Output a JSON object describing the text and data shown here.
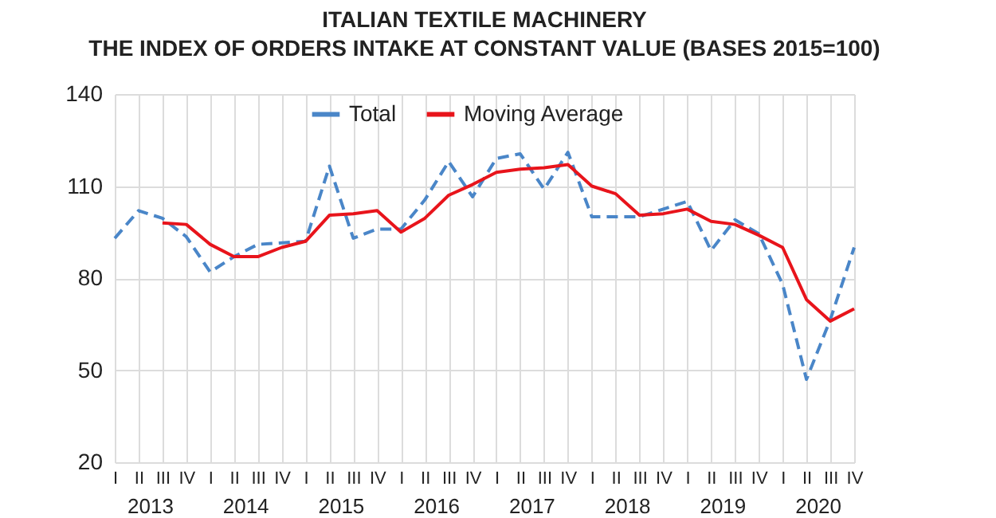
{
  "chart_data": {
    "type": "line",
    "title": "ITALIAN TEXTILE MACHINERY",
    "subtitle": "THE INDEX OF ORDERS INTAKE AT CONSTANT VALUE (BASES 2015=100)",
    "categories": [
      "I",
      "II",
      "III",
      "IV",
      "I",
      "II",
      "III",
      "IV",
      "I",
      "II",
      "III",
      "IV",
      "I",
      "II",
      "III",
      "IV",
      "I",
      "II",
      "III",
      "IV",
      "I",
      "II",
      "III",
      "IV",
      "I",
      "II",
      "III",
      "IV",
      "I",
      "II",
      "III",
      "IV"
    ],
    "annotations": [
      "2013",
      "2014",
      "2015",
      "2016",
      "2017",
      "2018",
      "2019",
      "2020"
    ],
    "series": [
      {
        "name": "Total",
        "color": "#4a86c8",
        "line_style": "dashed",
        "values": [
          93,
          102,
          99.5,
          93.5,
          82,
          87,
          91,
          91.5,
          92,
          116.5,
          93,
          96,
          96,
          105.5,
          118,
          106.5,
          119,
          120.5,
          109,
          121,
          100,
          100,
          100,
          102.5,
          105,
          89,
          99,
          94.5,
          78,
          47,
          66.5,
          90
        ]
      },
      {
        "name": "Moving Average",
        "color": "#e8141b",
        "line_style": "solid",
        "values": [
          null,
          null,
          98,
          97.5,
          91,
          87,
          87,
          90,
          92,
          100.5,
          101,
          102,
          95,
          99.5,
          107,
          110.5,
          114.5,
          115.5,
          116,
          117,
          110,
          107.5,
          100.5,
          101,
          102.5,
          98.5,
          97.5,
          94,
          90,
          73,
          66,
          70
        ]
      }
    ],
    "ylim": [
      20,
      140
    ],
    "yticks": [
      20,
      50,
      80,
      110,
      140
    ],
    "grid": true,
    "legend": "top"
  }
}
